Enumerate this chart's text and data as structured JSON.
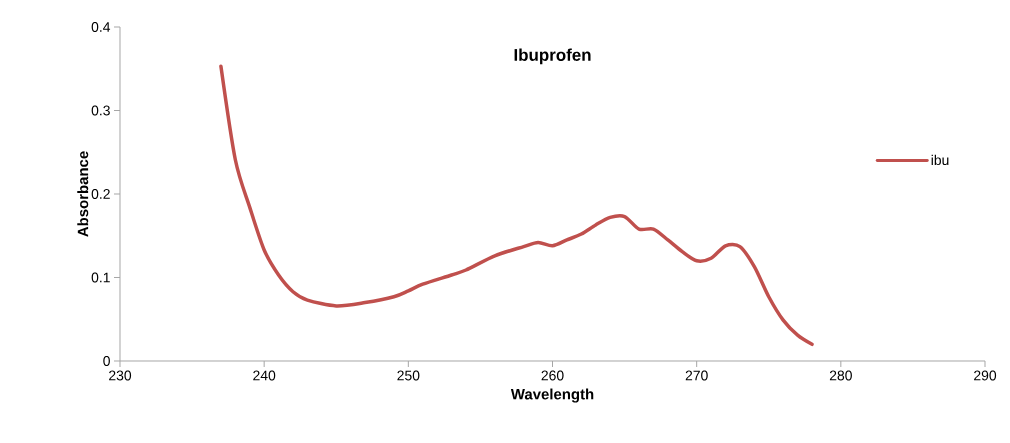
{
  "chart_data": {
    "type": "line",
    "title": "Ibuprofen",
    "xlabel": "Wavelength",
    "ylabel": "Absorbance",
    "x": [
      237,
      238,
      239,
      240,
      241,
      242,
      243,
      245,
      247,
      249,
      250,
      251,
      253,
      254,
      256,
      258,
      259,
      260,
      261,
      262,
      263,
      264,
      265,
      266,
      267,
      268,
      269,
      270,
      271,
      272,
      273,
      274,
      275,
      276,
      277,
      278
    ],
    "series": [
      {
        "name": "ibu",
        "color": "#c0504d",
        "values": [
          0.353,
          0.241,
          0.184,
          0.133,
          0.103,
          0.083,
          0.073,
          0.066,
          0.07,
          0.077,
          0.084,
          0.092,
          0.103,
          0.109,
          0.126,
          0.137,
          0.142,
          0.138,
          0.145,
          0.152,
          0.163,
          0.172,
          0.173,
          0.158,
          0.158,
          0.145,
          0.131,
          0.12,
          0.123,
          0.138,
          0.137,
          0.113,
          0.077,
          0.049,
          0.031,
          0.02
        ]
      }
    ],
    "xlim": [
      230,
      290
    ],
    "ylim": [
      0,
      0.4
    ],
    "xticks": [
      230,
      240,
      250,
      260,
      270,
      280,
      290
    ],
    "yticks": [
      0,
      0.1,
      0.2,
      0.3,
      0.4
    ],
    "legend": "right",
    "marker": "none",
    "line_style": "solid",
    "grid": false
  }
}
